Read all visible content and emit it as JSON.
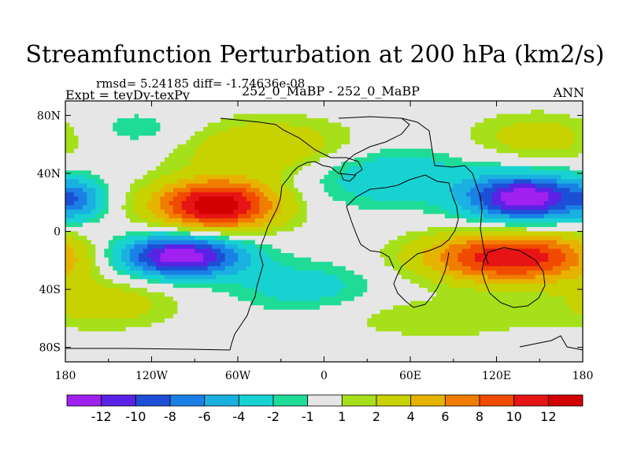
{
  "title": "Streamfunction Perturbation at 200 hPa (km2/s)",
  "stats": "rmsd= 5.24185  diff= -1.74636e-08",
  "experiment": "Expt = teyDy-texPy",
  "case": "252_0_MaBP - 252_0_MaBP",
  "season": "ANN",
  "chart_data": {
    "type": "heatmap",
    "title": "Streamfunction Perturbation at 200 hPa (km2/s)",
    "x_ticks": [
      {
        "value": -180,
        "label": "180"
      },
      {
        "value": -120,
        "label": "120W"
      },
      {
        "value": -60,
        "label": "60W"
      },
      {
        "value": 0,
        "label": "0"
      },
      {
        "value": 60,
        "label": "60E"
      },
      {
        "value": 120,
        "label": "120E"
      },
      {
        "value": 180,
        "label": "180"
      }
    ],
    "y_ticks": [
      {
        "value": 80,
        "label": "80N"
      },
      {
        "value": 40,
        "label": "40N"
      },
      {
        "value": 0,
        "label": "0"
      },
      {
        "value": -40,
        "label": "40S"
      },
      {
        "value": -80,
        "label": "80S"
      }
    ],
    "xlim": [
      -180,
      180
    ],
    "ylim": [
      -90,
      90
    ],
    "contour_levels": [
      -12,
      -10,
      -8,
      -6,
      -4,
      -2,
      -1,
      1,
      2,
      4,
      6,
      8,
      10,
      12
    ],
    "colorbar_labels": [
      "-12",
      "-10",
      "-8",
      "-6",
      "-4",
      "-2",
      "-1",
      "1",
      "2",
      "4",
      "6",
      "8",
      "10",
      "12"
    ],
    "colorbar_colors": [
      "#a020f0",
      "#5a22e4",
      "#1d4fd6",
      "#1b80e6",
      "#1ab0e0",
      "#18d2d2",
      "#1edc96",
      "#e6e6e6",
      "#a6e01a",
      "#c8d200",
      "#e6b400",
      "#f07d00",
      "#f04b00",
      "#e61414",
      "#d20000"
    ],
    "field_anomalies": [
      {
        "lon": -75,
        "lat": 18,
        "amp": 14,
        "sx": 30,
        "sy": 12
      },
      {
        "lon": -100,
        "lat": -17,
        "amp": -14,
        "sx": 30,
        "sy": 10
      },
      {
        "lon": 140,
        "lat": 23,
        "amp": -14,
        "sx": 28,
        "sy": 11
      },
      {
        "lon": 130,
        "lat": -18,
        "amp": 12,
        "sx": 42,
        "sy": 12
      },
      {
        "lon": -40,
        "lat": 58,
        "amp": 4,
        "sx": 45,
        "sy": 14
      },
      {
        "lon": 150,
        "lat": 65,
        "amp": 3,
        "sx": 35,
        "sy": 12
      },
      {
        "lon": 45,
        "lat": 38,
        "amp": -4,
        "sx": 40,
        "sy": 14
      },
      {
        "lon": -15,
        "lat": -38,
        "amp": -3,
        "sx": 35,
        "sy": 12
      },
      {
        "lon": -150,
        "lat": -50,
        "amp": 3,
        "sx": 35,
        "sy": 12
      },
      {
        "lon": -170,
        "lat": 22,
        "amp": -5,
        "sx": 12,
        "sy": 10
      },
      {
        "lon": 80,
        "lat": -60,
        "amp": 2,
        "sx": 50,
        "sy": 10
      },
      {
        "lon": -130,
        "lat": 70,
        "amp": -2,
        "sx": 30,
        "sy": 10
      }
    ]
  }
}
